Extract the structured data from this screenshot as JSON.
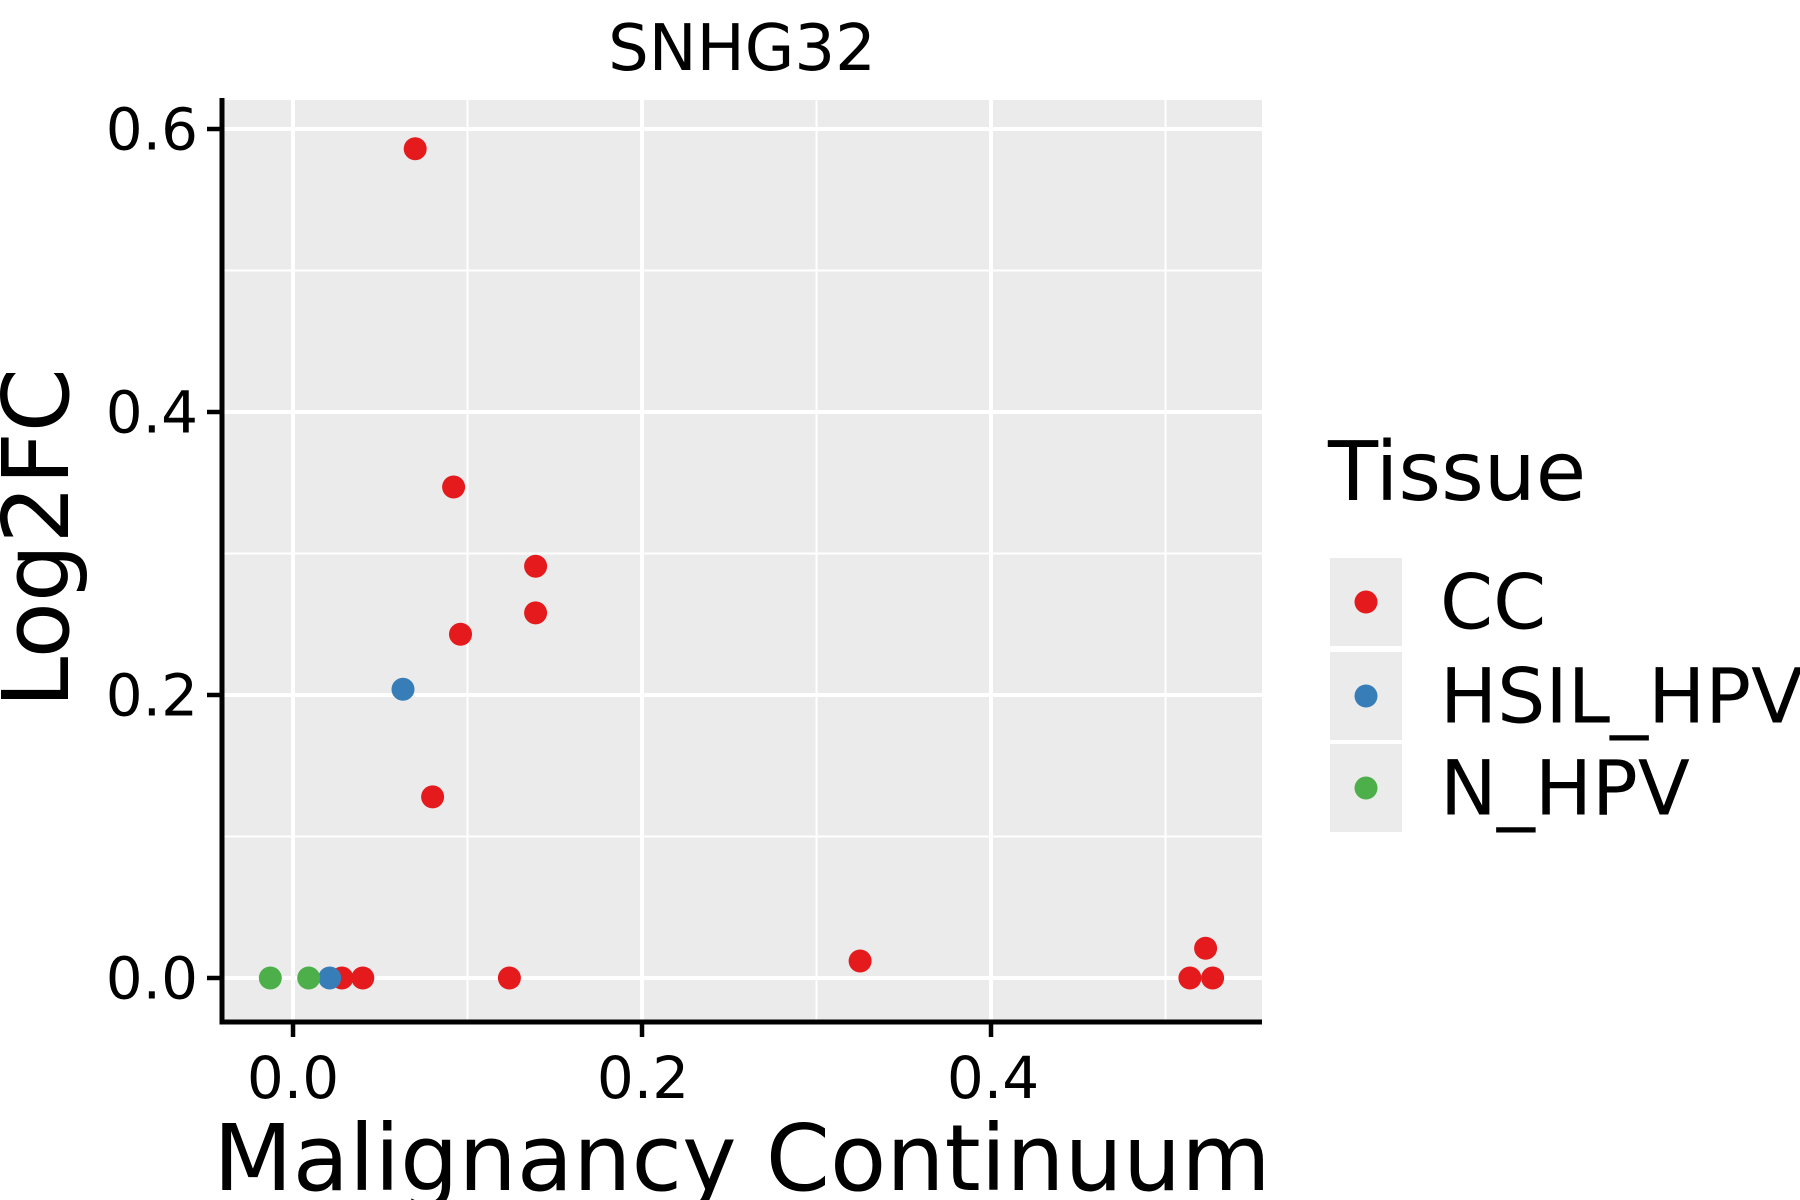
{
  "figure": {
    "background": "#ffffff",
    "panel_bg": "#ebebeb",
    "grid_color": "#ffffff",
    "spine_color": "#000000",
    "text_color": "#000000"
  },
  "chart_data": {
    "type": "scatter",
    "title": "SNHG32",
    "xlabel": "Malignancy Continuum",
    "ylabel": "Log2FC",
    "xlim": [
      -0.0407,
      0.5553
    ],
    "ylim": [
      -0.0311,
      0.6205
    ],
    "x_ticks": [
      0.0,
      0.2,
      0.4
    ],
    "y_ticks": [
      0.0,
      0.2,
      0.4,
      0.6
    ],
    "x_minor_gridlines": [
      0.1,
      0.3,
      0.5
    ],
    "y_minor_gridlines": [
      0.1,
      0.3,
      0.5
    ],
    "grid": true,
    "legend_title": "Tissue",
    "legend_position": "right",
    "point_radius_px": 11.5,
    "series": [
      {
        "name": "CC",
        "color": "#e41a1c",
        "points": [
          [
            0.07,
            0.586
          ],
          [
            0.092,
            0.347
          ],
          [
            0.139,
            0.291
          ],
          [
            0.139,
            0.258
          ],
          [
            0.096,
            0.243
          ],
          [
            0.08,
            0.128
          ],
          [
            0.028,
            0.0
          ],
          [
            0.04,
            0.0
          ],
          [
            0.124,
            0.0
          ],
          [
            0.325,
            0.012
          ],
          [
            0.514,
            0.0
          ],
          [
            0.527,
            0.0
          ],
          [
            0.523,
            0.021
          ]
        ]
      },
      {
        "name": "HSIL_HPV",
        "color": "#377eb8",
        "points": [
          [
            0.021,
            0.0
          ],
          [
            0.063,
            0.204
          ]
        ]
      },
      {
        "name": "N_HPV",
        "color": "#4daf4a",
        "points": [
          [
            -0.013,
            0.0
          ],
          [
            0.009,
            0.0
          ]
        ]
      }
    ]
  },
  "axes": {
    "x_tick_labels": [
      "0.0",
      "0.2",
      "0.4"
    ],
    "y_tick_labels": [
      "0.0",
      "0.2",
      "0.4",
      "0.6"
    ]
  },
  "legend": {
    "title": "Tissue",
    "key_bg": "#ebebeb",
    "items": [
      {
        "label": "CC",
        "color": "#e41a1c"
      },
      {
        "label": "HSIL_HPV",
        "color": "#377eb8"
      },
      {
        "label": "N_HPV",
        "color": "#4daf4a"
      }
    ]
  }
}
